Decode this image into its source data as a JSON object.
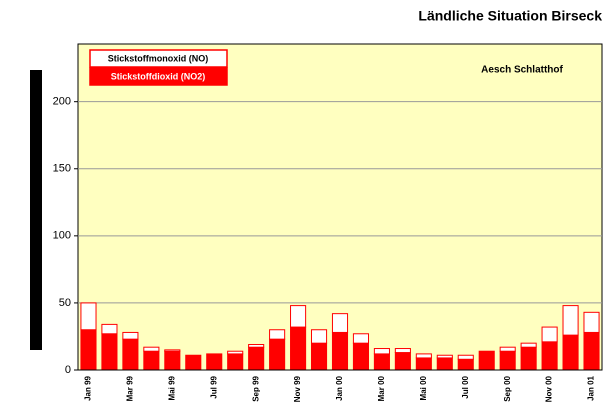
{
  "chart_data": {
    "type": "stacked_bar",
    "title": "Ländliche Situation Birseck",
    "annotation": "Aesch Schlatthof",
    "categories": [
      "Jan 99",
      null,
      "Mar 99",
      null,
      "Mai 99",
      null,
      "Jul 99",
      null,
      "Sep 99",
      null,
      "Nov 99",
      null,
      "Jan 00",
      null,
      "Mar 00",
      null,
      "Mai 00",
      null,
      "Jul 00",
      null,
      "Sep 00",
      null,
      "Nov 00",
      null,
      "Jan 01"
    ],
    "series": [
      {
        "name": "Stickstoffdioxid (NO2)",
        "color": "#ff0000",
        "values": [
          30,
          27,
          23,
          14,
          14,
          11,
          12,
          12,
          17,
          23,
          32,
          20,
          28,
          20,
          12,
          13,
          9,
          9,
          8,
          14,
          14,
          17,
          21,
          26,
          28
        ]
      },
      {
        "name": "Stickstoffmonoxid (NO)",
        "color": "#ffffff",
        "values": [
          20,
          7,
          5,
          3,
          1,
          0,
          0,
          2,
          2,
          7,
          16,
          10,
          14,
          7,
          4,
          3,
          3,
          2,
          3,
          0,
          3,
          3,
          11,
          22,
          15
        ]
      }
    ],
    "ylim": [
      0,
      243
    ],
    "yticks": [
      0,
      50,
      100,
      150,
      200
    ],
    "grid": true,
    "legend": "top-left"
  }
}
